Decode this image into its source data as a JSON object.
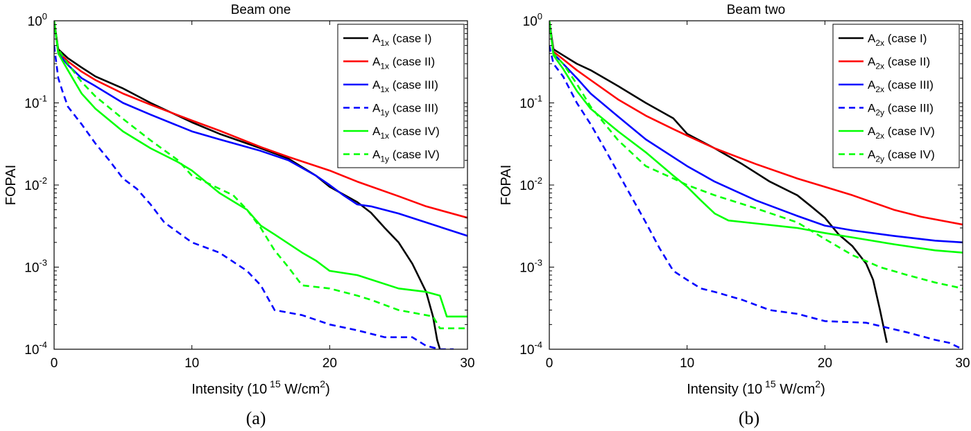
{
  "colors": {
    "black": "#000000",
    "red": "#ff0000",
    "blue": "#0000ff",
    "green": "#00ff00"
  },
  "ylabel": "FOPAI",
  "chart_data": [
    {
      "type": "line",
      "panel": "a",
      "caption": "(a)",
      "title": "Beam one",
      "xlabel": "Intensity (10^15 W/cm^2)",
      "ylabel": "FOPAI",
      "xlim": [
        0,
        30
      ],
      "ylim": [
        0.0001,
        1
      ],
      "yscale": "log",
      "xticks": [
        "0",
        "10",
        "20",
        "30"
      ],
      "yticks": [
        {
          "base": "10",
          "exp": "-4",
          "value": 0.0001
        },
        {
          "base": "10",
          "exp": "-3",
          "value": 0.001
        },
        {
          "base": "10",
          "exp": "-2",
          "value": 0.01
        },
        {
          "base": "10",
          "exp": "-1",
          "value": 0.1
        },
        {
          "base": "10",
          "exp": "0",
          "value": 1
        }
      ],
      "legend_position": "top-right",
      "series": [
        {
          "name": "A1x (case I)",
          "label_main": "A",
          "label_sub": "1x",
          "label_rest": " (case I)",
          "color": "black",
          "dash": "solid",
          "x": [
            0,
            0.3,
            1,
            2,
            3,
            5,
            7,
            10,
            12,
            15,
            17,
            19,
            20,
            22,
            23,
            24,
            25,
            26,
            27,
            27.5,
            27.8,
            28
          ],
          "y": [
            1,
            0.45,
            0.35,
            0.27,
            0.21,
            0.15,
            0.1,
            0.058,
            0.042,
            0.028,
            0.021,
            0.013,
            0.0095,
            0.0062,
            0.0046,
            0.003,
            0.002,
            0.0011,
            0.0005,
            0.00025,
            0.00013,
            0.0001
          ]
        },
        {
          "name": "A1x (case II)",
          "label_main": "A",
          "label_sub": "1x",
          "label_rest": " (case II)",
          "color": "red",
          "dash": "solid",
          "x": [
            0,
            0.3,
            1,
            2,
            3,
            5,
            7,
            10,
            12,
            15,
            17,
            20,
            22,
            25,
            27,
            30
          ],
          "y": [
            1,
            0.42,
            0.32,
            0.24,
            0.19,
            0.13,
            0.095,
            0.061,
            0.046,
            0.029,
            0.022,
            0.015,
            0.011,
            0.0073,
            0.0055,
            0.004
          ]
        },
        {
          "name": "A1x (case III)",
          "label_main": "A",
          "label_sub": "1x",
          "label_rest": " (case III)",
          "color": "blue",
          "dash": "solid",
          "x": [
            0,
            0.3,
            1,
            2,
            3,
            5,
            7,
            10,
            12,
            15,
            17,
            19,
            20,
            21,
            22,
            23,
            25,
            27,
            30
          ],
          "y": [
            1,
            0.4,
            0.29,
            0.2,
            0.16,
            0.1,
            0.072,
            0.045,
            0.036,
            0.026,
            0.02,
            0.013,
            0.01,
            0.0075,
            0.0058,
            0.0055,
            0.0045,
            0.0035,
            0.0024
          ]
        },
        {
          "name": "A1y (case III)",
          "label_main": "A",
          "label_sub": "1y",
          "label_rest": " (case III)",
          "color": "blue",
          "dash": "dashed",
          "x": [
            0,
            0.3,
            0.6,
            1,
            2,
            3,
            4,
            5,
            6,
            7,
            8,
            10,
            12,
            14,
            15,
            16,
            18,
            20,
            22,
            24,
            26,
            27,
            28,
            29
          ],
          "y": [
            0.5,
            0.2,
            0.14,
            0.09,
            0.055,
            0.032,
            0.02,
            0.012,
            0.009,
            0.0058,
            0.0035,
            0.002,
            0.0015,
            0.0009,
            0.0006,
            0.0003,
            0.00026,
            0.0002,
            0.00017,
            0.00014,
            0.00014,
            0.00011,
            0.0001,
            0.0001
          ]
        },
        {
          "name": "A1x (case IV)",
          "label_main": "A",
          "label_sub": "1x",
          "label_rest": " (case IV)",
          "color": "green",
          "dash": "solid",
          "x": [
            0,
            0.3,
            1,
            2,
            3,
            5,
            7,
            9,
            10,
            12,
            14,
            15,
            16,
            18,
            19,
            20,
            22,
            25,
            27,
            28,
            28.5,
            30
          ],
          "y": [
            1,
            0.4,
            0.25,
            0.13,
            0.085,
            0.045,
            0.028,
            0.019,
            0.015,
            0.008,
            0.005,
            0.0032,
            0.0025,
            0.0015,
            0.0012,
            0.0009,
            0.0008,
            0.00055,
            0.0005,
            0.00045,
            0.00025,
            0.00025
          ]
        },
        {
          "name": "A1y (case IV)",
          "label_main": "A",
          "label_sub": "1y",
          "label_rest": " (case IV)",
          "color": "green",
          "dash": "dashed",
          "x": [
            0,
            0.3,
            1,
            2,
            3,
            5,
            7,
            9,
            10,
            12,
            13,
            14,
            15,
            16,
            17,
            18,
            20,
            22,
            23,
            25,
            27,
            27.5,
            28,
            30
          ],
          "y": [
            1,
            0.45,
            0.3,
            0.18,
            0.12,
            0.064,
            0.035,
            0.02,
            0.013,
            0.009,
            0.0075,
            0.005,
            0.003,
            0.0016,
            0.001,
            0.0006,
            0.00055,
            0.00045,
            0.0004,
            0.0003,
            0.00026,
            0.00025,
            0.00018,
            0.00018
          ]
        }
      ]
    },
    {
      "type": "line",
      "panel": "b",
      "caption": "(b)",
      "title": "Beam two",
      "xlabel": "Intensity (10^15 W/cm^2)",
      "ylabel": "FOPAI",
      "xlim": [
        0,
        30
      ],
      "ylim": [
        0.0001,
        1
      ],
      "yscale": "log",
      "xticks": [
        "0",
        "10",
        "20",
        "30"
      ],
      "yticks": [
        {
          "base": "10",
          "exp": "-4",
          "value": 0.0001
        },
        {
          "base": "10",
          "exp": "-3",
          "value": 0.001
        },
        {
          "base": "10",
          "exp": "-2",
          "value": 0.01
        },
        {
          "base": "10",
          "exp": "-1",
          "value": 0.1
        },
        {
          "base": "10",
          "exp": "0",
          "value": 1
        }
      ],
      "legend_position": "top-right",
      "series": [
        {
          "name": "A2x (case I)",
          "label_main": "A",
          "label_sub": "2x",
          "label_rest": " (case I)",
          "color": "black",
          "dash": "solid",
          "x": [
            0,
            0.3,
            1,
            2,
            3,
            5,
            7,
            9,
            10,
            12,
            14,
            16,
            18,
            19,
            20,
            21,
            22,
            23,
            23.5,
            24,
            24.5
          ],
          "y": [
            1,
            0.45,
            0.38,
            0.3,
            0.25,
            0.16,
            0.1,
            0.065,
            0.042,
            0.028,
            0.018,
            0.011,
            0.0075,
            0.0055,
            0.004,
            0.0025,
            0.0018,
            0.0011,
            0.0007,
            0.0003,
            0.00012
          ]
        },
        {
          "name": "A2x (case II)",
          "label_main": "A",
          "label_sub": "2x",
          "label_rest": " (case II)",
          "color": "red",
          "dash": "solid",
          "x": [
            0,
            0.3,
            1,
            2,
            3,
            5,
            7,
            9,
            10,
            12,
            15,
            18,
            20,
            22,
            25,
            27,
            30
          ],
          "y": [
            1,
            0.42,
            0.34,
            0.25,
            0.19,
            0.11,
            0.07,
            0.048,
            0.04,
            0.028,
            0.018,
            0.012,
            0.0095,
            0.0075,
            0.005,
            0.0041,
            0.0033
          ]
        },
        {
          "name": "A2x (case III)",
          "label_main": "A",
          "label_sub": "2x",
          "label_rest": " (case III)",
          "color": "blue",
          "dash": "solid",
          "x": [
            0,
            0.3,
            1,
            2,
            3,
            5,
            7,
            10,
            12,
            15,
            18,
            20,
            22,
            25,
            28,
            30
          ],
          "y": [
            1,
            0.4,
            0.3,
            0.2,
            0.13,
            0.068,
            0.036,
            0.017,
            0.011,
            0.0065,
            0.0042,
            0.0032,
            0.0028,
            0.0024,
            0.0021,
            0.002
          ]
        },
        {
          "name": "A2y (case III)",
          "label_main": "A",
          "label_sub": "2y",
          "label_rest": " (case III)",
          "color": "blue",
          "dash": "dashed",
          "x": [
            0,
            0.3,
            1,
            2,
            3,
            4,
            5,
            6,
            7,
            8,
            9,
            10,
            11,
            12,
            14,
            16,
            18,
            20,
            23,
            26,
            28,
            29,
            30
          ],
          "y": [
            0.5,
            0.3,
            0.21,
            0.1,
            0.055,
            0.028,
            0.014,
            0.007,
            0.0035,
            0.0017,
            0.0009,
            0.0007,
            0.00055,
            0.0005,
            0.0004,
            0.0003,
            0.00027,
            0.00022,
            0.00021,
            0.00016,
            0.00013,
            0.00012,
            0.0001
          ]
        },
        {
          "name": "A2x (case IV)",
          "label_main": "A",
          "label_sub": "2x",
          "label_rest": " (case IV)",
          "color": "green",
          "dash": "solid",
          "x": [
            0,
            0.3,
            1,
            2,
            3,
            5,
            7,
            9,
            10,
            11,
            12,
            13,
            15,
            18,
            20,
            22,
            25,
            28,
            30
          ],
          "y": [
            1,
            0.38,
            0.26,
            0.14,
            0.085,
            0.045,
            0.025,
            0.013,
            0.0095,
            0.0065,
            0.0045,
            0.0037,
            0.0034,
            0.003,
            0.0026,
            0.0023,
            0.0019,
            0.0016,
            0.0015
          ]
        },
        {
          "name": "A2y (case IV)",
          "label_main": "A",
          "label_sub": "2y",
          "label_rest": " (case IV)",
          "color": "green",
          "dash": "dashed",
          "x": [
            0,
            0.3,
            1,
            2,
            3,
            5,
            7,
            9,
            10,
            12,
            15,
            18,
            20,
            22,
            24,
            26,
            28,
            30
          ],
          "y": [
            1,
            0.4,
            0.3,
            0.17,
            0.09,
            0.035,
            0.017,
            0.012,
            0.01,
            0.0075,
            0.0052,
            0.0035,
            0.0022,
            0.0014,
            0.001,
            0.0008,
            0.00065,
            0.00055
          ]
        }
      ]
    }
  ]
}
